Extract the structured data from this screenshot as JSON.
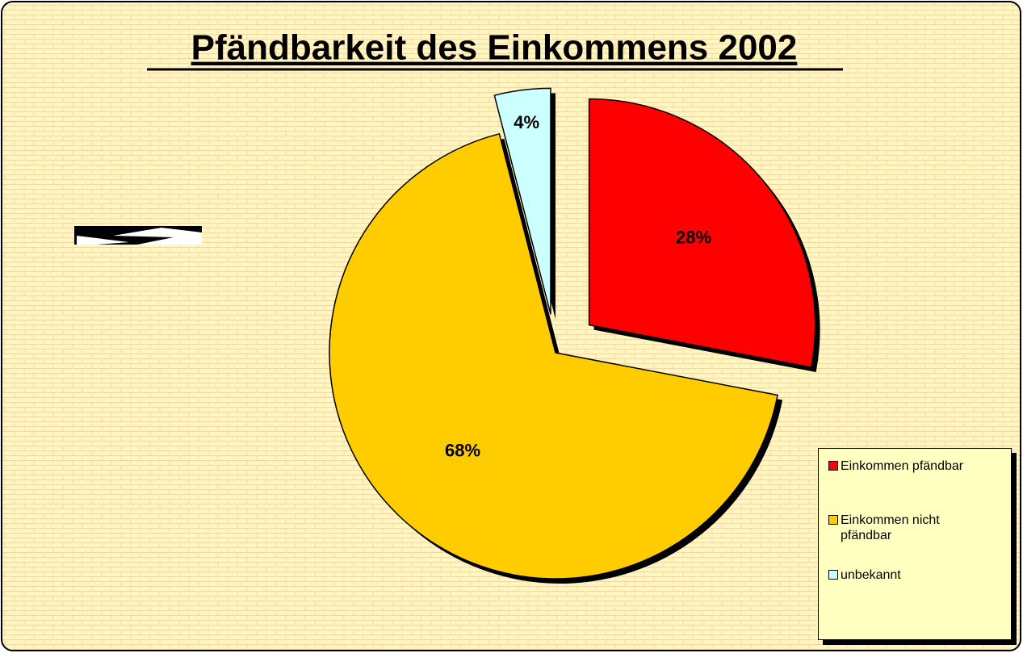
{
  "chart_data": {
    "type": "pie",
    "title": "Pfändbarkeit des Einkommens 2002",
    "categories": [
      "Einkommen pfändbar",
      "Einkommen nicht pfändbar",
      "unbekannt"
    ],
    "values": [
      28,
      68,
      4
    ],
    "value_labels": [
      "28%",
      "68%",
      "4%"
    ],
    "colors": [
      "#ff0000",
      "#ffcc00",
      "#ccffff"
    ],
    "legend": "right"
  }
}
